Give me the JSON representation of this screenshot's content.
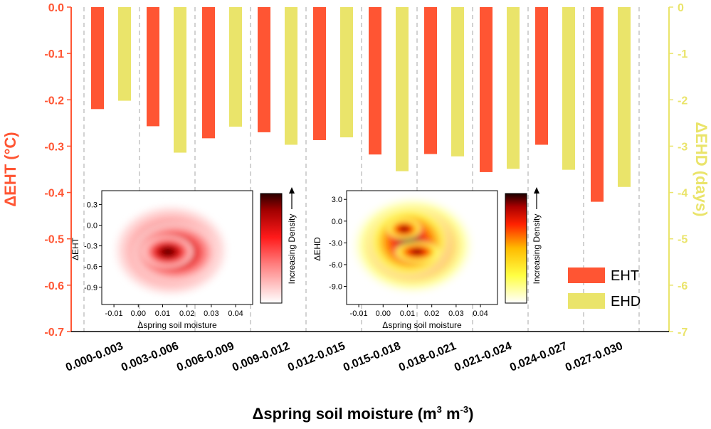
{
  "chart_data": [
    {
      "type": "bar",
      "xlabel": "Δspring soil moisture (m",
      "xlabel_sup": "3",
      "xlabel_mid": " m",
      "xlabel_sup2": "-3",
      "xlabel_end": ")",
      "ylabel_left": "ΔEHT (°C)",
      "ylabel_right": "ΔEHD (days)",
      "categories": [
        "0.000-0.003",
        "0.003-0.006",
        "0.006-0.009",
        "0.009-0.012",
        "0.012-0.015",
        "0.015-0.018",
        "0.018-0.021",
        "0.021-0.024",
        "0.024-0.027",
        "0.027-0.030"
      ],
      "ylim_left": [
        -0.7,
        0
      ],
      "ylim_right": [
        -7,
        0
      ],
      "yticks_left": [
        "0.0",
        "-0.1",
        "-0.2",
        "-0.3",
        "-0.4",
        "-0.5",
        "-0.6",
        "-0.7"
      ],
      "yticks_right": [
        "0",
        "-1",
        "-2",
        "-3",
        "-4",
        "-5",
        "-6",
        "-7"
      ],
      "series": [
        {
          "name": "EHT",
          "axis": "left",
          "color": "#ff5533",
          "values": [
            -0.22,
            -0.257,
            -0.283,
            -0.27,
            -0.287,
            -0.318,
            -0.317,
            -0.356,
            -0.297,
            -0.42
          ]
        },
        {
          "name": "EHD",
          "axis": "right",
          "color": "#eae46a",
          "values": [
            -2.02,
            -3.14,
            -2.58,
            -2.97,
            -2.81,
            -3.54,
            -3.22,
            -3.49,
            -3.51,
            -3.88
          ]
        }
      ],
      "legend": {
        "placement": "bottom-right",
        "items": [
          "EHT",
          "EHD"
        ]
      },
      "grid": "vertical dashed separators between categories"
    },
    {
      "type": "heatmap",
      "xlabel": "Δspring soil moisture",
      "ylabel": "ΔEHT",
      "xticks": [
        "-0.01",
        "0.00",
        "0.01",
        "0.02",
        "0.03",
        "0.04"
      ],
      "xlim": [
        -0.015,
        0.047
      ],
      "yticks": [
        "0.3",
        "0.0",
        "-0.3",
        "-0.6",
        "-0.9"
      ],
      "ylim": [
        -1.15,
        0.5
      ],
      "colorbar_label": "Increasing Density",
      "colormap": [
        "#ffffff",
        "#ff9999",
        "#ff2020",
        "#c00000",
        "#3a0000"
      ],
      "density_peak": {
        "x": 0.012,
        "y": -0.33
      }
    },
    {
      "type": "heatmap",
      "xlabel": "Δspring soil moisture",
      "ylabel": "ΔEHD",
      "xticks": [
        "-0.01",
        "0.00",
        "0.01",
        "0.02",
        "0.03",
        "0.04"
      ],
      "xlim": [
        -0.015,
        0.047
      ],
      "yticks": [
        "3.0",
        "0.0",
        "-3.0",
        "-6.0",
        "-9.0"
      ],
      "ylim": [
        -11.5,
        4.2
      ],
      "colorbar_label": "Increasing Density",
      "colormap": [
        "#ffffff",
        "#ffff66",
        "#ffcc00",
        "#ff4400",
        "#cc0000",
        "#2a0000"
      ],
      "density_peaks": [
        {
          "x": 0.015,
          "y": -4.9
        },
        {
          "x": 0.011,
          "y": -1.8
        }
      ]
    }
  ]
}
